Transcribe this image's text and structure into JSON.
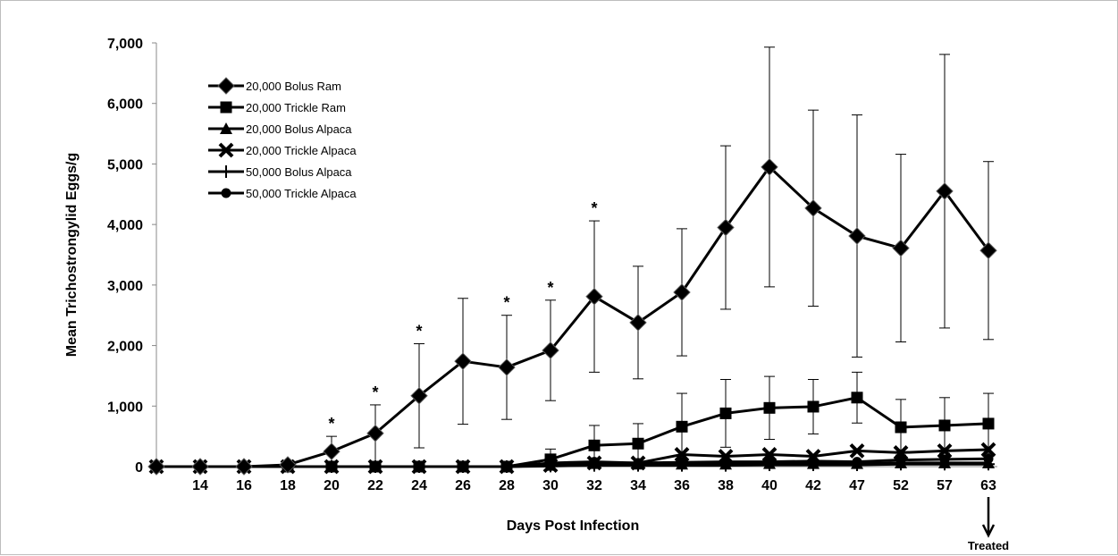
{
  "chart_data": {
    "type": "line",
    "title": "",
    "xlabel": "Days Post Infection",
    "ylabel": "Mean Trichostrongylid Eggs/g",
    "ylim": [
      0,
      7000
    ],
    "yticks": [
      "0",
      "1,000",
      "2,000",
      "3,000",
      "4,000",
      "5,000",
      "6,000",
      "7,000"
    ],
    "categories": [
      "",
      "14",
      "16",
      "18",
      "20",
      "22",
      "24",
      "26",
      "28",
      "30",
      "32",
      "34",
      "36",
      "38",
      "40",
      "42",
      "47",
      "52",
      "57",
      "63"
    ],
    "legend_position": "top-left",
    "series": [
      {
        "name": "20,000 Bolus Ram",
        "marker": "diamond",
        "values": [
          0,
          0,
          0,
          30,
          250,
          550,
          1170,
          1740,
          1640,
          1920,
          2810,
          2380,
          2880,
          3950,
          4950,
          4270,
          3810,
          3610,
          4550,
          3570
        ],
        "error": [
          0,
          0,
          0,
          0,
          250,
          470,
          860,
          1040,
          860,
          830,
          1250,
          930,
          1050,
          1350,
          1980,
          1620,
          2000,
          1550,
          2260,
          1470
        ]
      },
      {
        "name": "20,000 Trickle Ram",
        "marker": "square",
        "values": [
          0,
          0,
          0,
          0,
          0,
          0,
          0,
          0,
          0,
          120,
          350,
          380,
          660,
          880,
          970,
          990,
          1140,
          650,
          680,
          710
        ],
        "error": [
          0,
          0,
          0,
          0,
          0,
          0,
          0,
          0,
          0,
          170,
          330,
          330,
          550,
          560,
          520,
          450,
          420,
          460,
          460,
          500
        ]
      },
      {
        "name": "20,000 Bolus Alpaca",
        "marker": "triangle",
        "values": [
          0,
          0,
          0,
          0,
          0,
          0,
          0,
          0,
          0,
          20,
          50,
          40,
          40,
          40,
          50,
          50,
          50,
          60,
          60,
          60
        ],
        "error": [
          0,
          0,
          0,
          0,
          0,
          0,
          0,
          0,
          0,
          0,
          0,
          0,
          0,
          0,
          0,
          0,
          0,
          0,
          0,
          0
        ]
      },
      {
        "name": "20,000 Trickle Alpaca",
        "marker": "x",
        "values": [
          0,
          0,
          0,
          0,
          0,
          0,
          0,
          0,
          0,
          20,
          60,
          60,
          200,
          170,
          200,
          170,
          260,
          230,
          260,
          280
        ],
        "error": [
          0,
          0,
          0,
          0,
          0,
          0,
          0,
          0,
          0,
          0,
          0,
          0,
          0,
          0,
          0,
          0,
          0,
          0,
          0,
          0
        ]
      },
      {
        "name": "50,000 Bolus Alpaca",
        "marker": "plus",
        "values": [
          0,
          0,
          0,
          0,
          0,
          0,
          0,
          0,
          0,
          10,
          20,
          20,
          20,
          20,
          30,
          30,
          30,
          40,
          40,
          40
        ],
        "error": [
          0,
          0,
          0,
          0,
          0,
          0,
          0,
          0,
          0,
          0,
          0,
          0,
          0,
          0,
          0,
          0,
          0,
          0,
          0,
          0
        ]
      },
      {
        "name": "50,000 Trickle Alpaca",
        "marker": "circle",
        "values": [
          0,
          0,
          0,
          0,
          0,
          0,
          0,
          0,
          0,
          60,
          80,
          60,
          70,
          80,
          80,
          90,
          80,
          110,
          120,
          130
        ],
        "error": [
          0,
          0,
          0,
          0,
          0,
          0,
          0,
          0,
          0,
          0,
          0,
          0,
          0,
          0,
          0,
          0,
          0,
          0,
          0,
          0
        ]
      }
    ],
    "annotations": {
      "significance_marker": "*",
      "significant_days": [
        "20",
        "22",
        "24",
        "28",
        "30",
        "32"
      ],
      "treated_label": "Treated",
      "treated_day": "63"
    }
  }
}
